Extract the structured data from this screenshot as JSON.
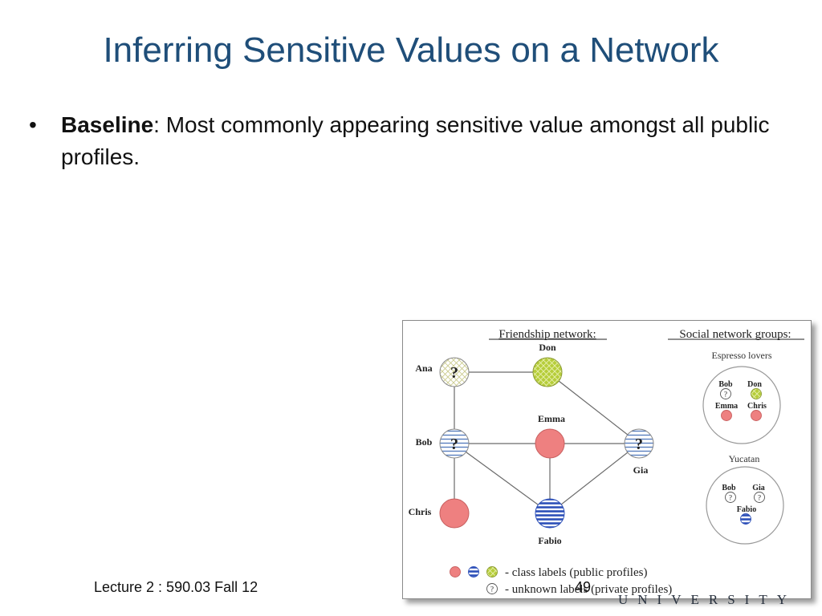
{
  "slide": {
    "title": "Inferring Sensitive Values on a Network",
    "bullet_bold": "Baseline",
    "bullet_rest": ": Most commonly appearing sensitive value amongst all public profiles.",
    "footer_left": "Lecture 2 : 590.03 Fall 12",
    "page_number": "49",
    "watermark": "UNIVERSITY"
  },
  "figure": {
    "friendship_title": "Friendship network:",
    "groups_title": "Social network groups:",
    "nodes": {
      "ana": "Ana",
      "don": "Don",
      "bob": "Bob",
      "emma": "Emma",
      "gia": "Gia",
      "chris": "Chris",
      "fabio": "Fabio"
    },
    "unknown_mark": "?",
    "groups": {
      "espresso": {
        "name": "Espresso lovers",
        "members": [
          "Bob",
          "Don",
          "Emma",
          "Chris"
        ]
      },
      "yucatan": {
        "name": "Yucatan",
        "members": [
          "Bob",
          "Gia",
          "Fabio"
        ]
      }
    },
    "legend": {
      "class_labels": "- class labels (public profiles)",
      "unknown_labels": "- unknown labels (private profiles)"
    },
    "colors": {
      "red": "#ee8080",
      "blue": "#3a62c8",
      "green": "#b6cd3a"
    }
  }
}
